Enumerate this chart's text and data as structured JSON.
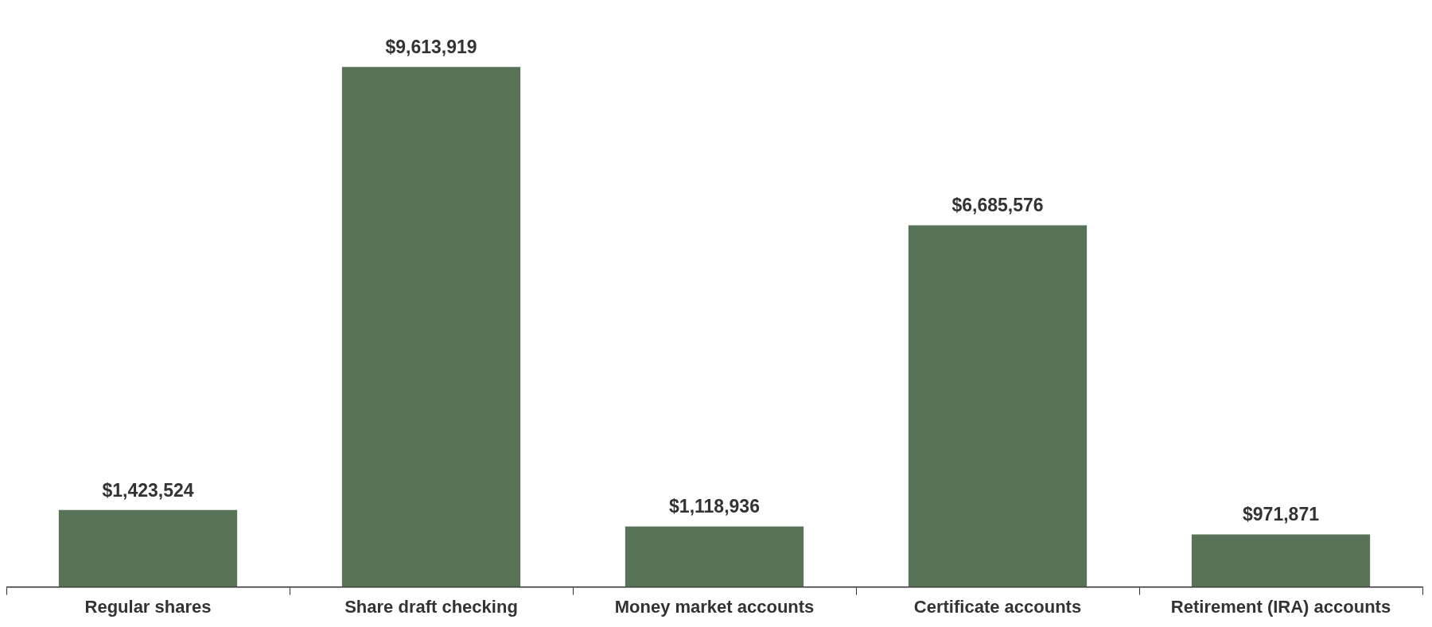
{
  "chart_data": {
    "type": "bar",
    "categories": [
      "Regular shares",
      "Share draft checking",
      "Money market accounts",
      "Certificate accounts",
      "Retirement (IRA) accounts"
    ],
    "values": [
      1423524,
      9613919,
      1118936,
      6685576,
      971871
    ],
    "value_labels": [
      "$1,423,524",
      "$9,613,919",
      "$1,118,936",
      "$6,685,576",
      "$971,871"
    ],
    "color": "#587358",
    "grid": false,
    "legend": false,
    "tick_labels": "x"
  }
}
